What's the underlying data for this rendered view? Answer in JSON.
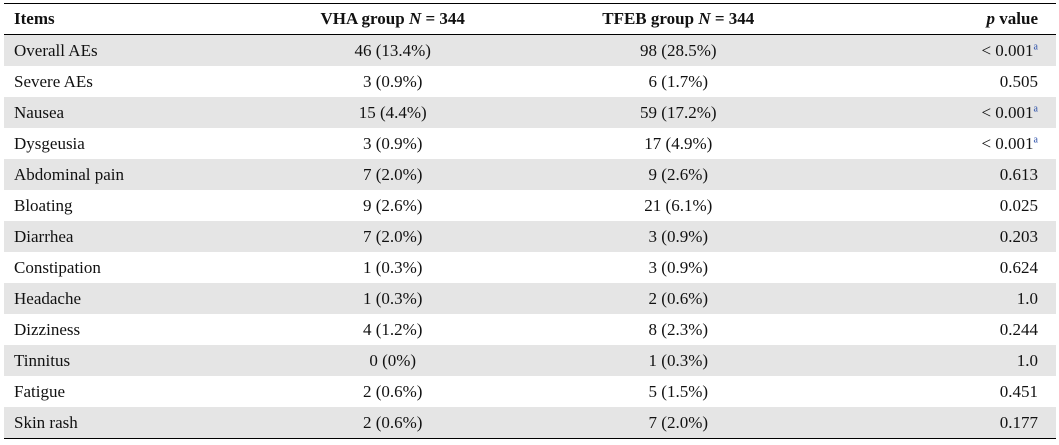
{
  "table": {
    "headers": {
      "items": "Items",
      "vha_prefix": "VHA group ",
      "vha_n": "N",
      "vha_suffix": " = 344",
      "tfeb_prefix": "TFEB group ",
      "tfeb_n": "N",
      "tfeb_suffix": " = 344",
      "p_italic": "p",
      "p_suffix": " value"
    },
    "rows": [
      {
        "item": "Overall AEs",
        "vha": "46 (13.4%)",
        "tfeb": "98 (28.5%)",
        "p": "< 0.001",
        "note": "a"
      },
      {
        "item": "Severe AEs",
        "vha": "3 (0.9%)",
        "tfeb": "6 (1.7%)",
        "p": "0.505",
        "note": ""
      },
      {
        "item": "Nausea",
        "vha": "15 (4.4%)",
        "tfeb": "59 (17.2%)",
        "p": "< 0.001",
        "note": "a"
      },
      {
        "item": "Dysgeusia",
        "vha": "3 (0.9%)",
        "tfeb": "17 (4.9%)",
        "p": "< 0.001",
        "note": "a"
      },
      {
        "item": "Abdominal pain",
        "vha": "7 (2.0%)",
        "tfeb": "9 (2.6%)",
        "p": "0.613",
        "note": ""
      },
      {
        "item": "Bloating",
        "vha": "9 (2.6%)",
        "tfeb": "21 (6.1%)",
        "p": "0.025",
        "note": ""
      },
      {
        "item": "Diarrhea",
        "vha": "7 (2.0%)",
        "tfeb": "3 (0.9%)",
        "p": "0.203",
        "note": ""
      },
      {
        "item": "Constipation",
        "vha": "1 (0.3%)",
        "tfeb": "3 (0.9%)",
        "p": "0.624",
        "note": ""
      },
      {
        "item": "Headache",
        "vha": "1 (0.3%)",
        "tfeb": "2 (0.6%)",
        "p": "1.0",
        "note": ""
      },
      {
        "item": "Dizziness",
        "vha": "4 (1.2%)",
        "tfeb": "8 (2.3%)",
        "p": "0.244",
        "note": ""
      },
      {
        "item": "Tinnitus",
        "vha": "0 (0%)",
        "tfeb": "1 (0.3%)",
        "p": "1.0",
        "note": ""
      },
      {
        "item": "Fatigue",
        "vha": "2 (0.6%)",
        "tfeb": "5 (1.5%)",
        "p": "0.451",
        "note": ""
      },
      {
        "item": "Skin rash",
        "vha": "2 (0.6%)",
        "tfeb": "7 (2.0%)",
        "p": "0.177",
        "note": ""
      }
    ]
  }
}
